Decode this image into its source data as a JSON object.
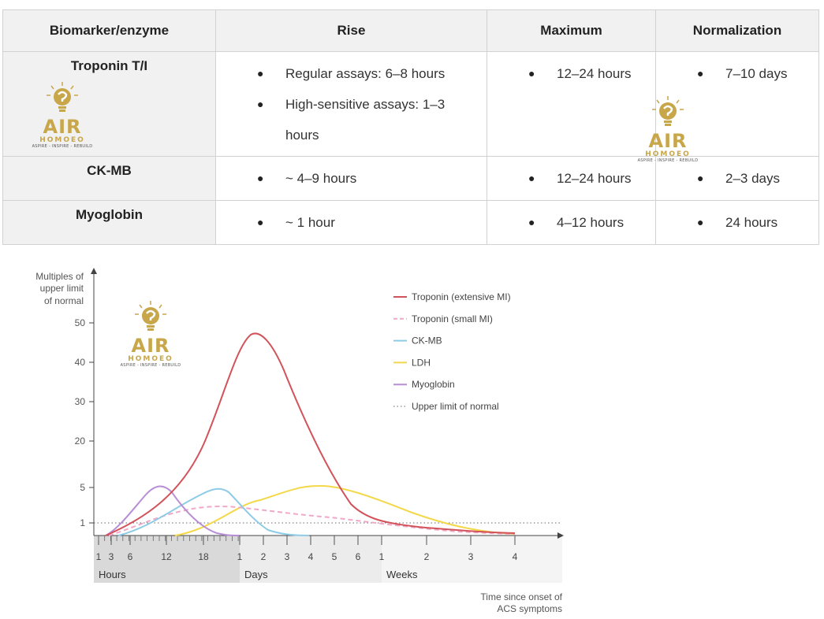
{
  "table": {
    "headers": [
      "Biomarker/enzyme",
      "Rise",
      "Maximum",
      "Normalization"
    ],
    "rows": [
      {
        "name": "Troponin T/I",
        "rise": [
          "Regular assays: 6–8 hours",
          "High-sensitive assays: 1–3 hours"
        ],
        "maximum": [
          "12–24 hours"
        ],
        "normalization": [
          "7–10 days"
        ]
      },
      {
        "name": "CK-MB",
        "rise": [
          "~ 4–9 hours"
        ],
        "maximum": [
          "12–24 hours"
        ],
        "normalization": [
          "2–3 days"
        ]
      },
      {
        "name": "Myoglobin",
        "rise": [
          "~ 1 hour"
        ],
        "maximum": [
          "4–12 hours"
        ],
        "normalization": [
          "24 hours"
        ]
      }
    ]
  },
  "watermark": {
    "brand": "AIR",
    "sub": "HOMOEO",
    "tagline": "ASPIRE - INSPIRE - REBUILD"
  },
  "chart_data": {
    "type": "line",
    "ylabel": "Multiples of upper limit of normal",
    "xlabel": "Time since onset of ACS symptoms",
    "y_ticks": [
      "50",
      "40",
      "30",
      "20",
      "5",
      "1"
    ],
    "x_groups": [
      {
        "label": "Hours",
        "ticks": [
          "1",
          "3",
          "6",
          "12",
          "18"
        ]
      },
      {
        "label": "Days",
        "ticks": [
          "1",
          "2",
          "3",
          "4",
          "5",
          "6"
        ]
      },
      {
        "label": "Weeks",
        "ticks": [
          "1",
          "2",
          "3",
          "4"
        ]
      }
    ],
    "series": [
      {
        "name": "Troponin (extensive MI)",
        "color": "#d2525a",
        "style": "solid",
        "points": [
          [
            "1h",
            0
          ],
          [
            "12h",
            3
          ],
          [
            "18h",
            20
          ],
          [
            "1.5d",
            47
          ],
          [
            "3d",
            30
          ],
          [
            "4d",
            12
          ],
          [
            "5d",
            5
          ],
          [
            "1w",
            1.2
          ],
          [
            "3w",
            0.5
          ],
          [
            "4w",
            0.3
          ]
        ]
      },
      {
        "name": "Troponin (small MI)",
        "color": "#f0a8c8",
        "style": "dashed",
        "points": [
          [
            "1h",
            0
          ],
          [
            "12h",
            1.5
          ],
          [
            "18h",
            2.3
          ],
          [
            "1.5d",
            2.1
          ],
          [
            "5d",
            1.2
          ],
          [
            "1w",
            0.8
          ],
          [
            "4w",
            0.3
          ]
        ]
      },
      {
        "name": "CK-MB",
        "color": "#8ecbe6",
        "style": "solid",
        "points": [
          [
            "1h",
            0
          ],
          [
            "12h",
            1.5
          ],
          [
            "20h",
            4.5
          ],
          [
            "1d",
            2.5
          ],
          [
            "2d",
            0.5
          ],
          [
            "3d",
            0
          ]
        ]
      },
      {
        "name": "LDH",
        "color": "#f3d84a",
        "style": "solid",
        "points": [
          [
            "12h",
            0
          ],
          [
            "1.5d",
            2.5
          ],
          [
            "4d",
            5
          ],
          [
            "1w",
            3
          ],
          [
            "3w",
            0.5
          ],
          [
            "4w",
            0.2
          ]
        ]
      },
      {
        "name": "Myoglobin",
        "color": "#b88ed4",
        "style": "solid",
        "points": [
          [
            "1h",
            0
          ],
          [
            "10h",
            5
          ],
          [
            "15h",
            1.5
          ],
          [
            "1d",
            0
          ]
        ]
      },
      {
        "name": "Upper limit of normal",
        "color": "#666666",
        "style": "dotted",
        "points": [
          [
            "0h",
            1
          ],
          [
            "4w",
            1
          ]
        ]
      }
    ]
  }
}
